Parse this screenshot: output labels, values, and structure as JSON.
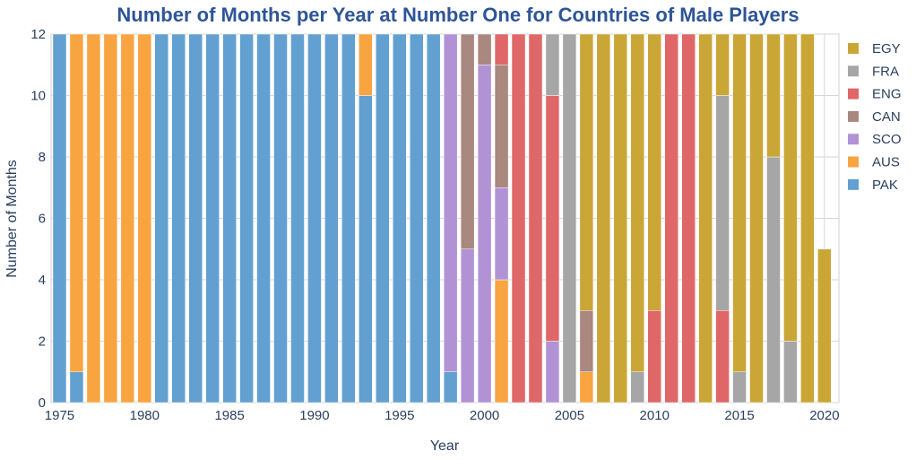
{
  "chart_data": {
    "type": "bar",
    "stacked": true,
    "title": "Number of Months per Year at Number One for Countries of Male Players",
    "xlabel": "Year",
    "ylabel": "Number of Months",
    "ylim": [
      0,
      12
    ],
    "xlim": [
      1974.5,
      2020.85
    ],
    "yticks": [
      0,
      2,
      4,
      6,
      8,
      10,
      12
    ],
    "xticks": [
      1975,
      1980,
      1985,
      1990,
      1995,
      2000,
      2005,
      2010,
      2015,
      2020
    ],
    "grid": true,
    "legend_position": "right",
    "stack_order": [
      "PAK",
      "AUS",
      "SCO",
      "CAN",
      "ENG",
      "FRA",
      "EGY"
    ],
    "legend_order": [
      "EGY",
      "FRA",
      "ENG",
      "CAN",
      "SCO",
      "AUS",
      "PAK"
    ],
    "colors": {
      "PAK": "#62a0d2",
      "AUS": "#f8a441",
      "SCO": "#b193d5",
      "CAN": "#a98880",
      "ENG": "#e06767",
      "FRA": "#a6a6a6",
      "EGY": "#c9a636"
    },
    "data": [
      {
        "year": 1975,
        "PAK": 12
      },
      {
        "year": 1976,
        "PAK": 1,
        "AUS": 11
      },
      {
        "year": 1977,
        "AUS": 12
      },
      {
        "year": 1978,
        "AUS": 12
      },
      {
        "year": 1979,
        "AUS": 12
      },
      {
        "year": 1980,
        "AUS": 12
      },
      {
        "year": 1981,
        "PAK": 12
      },
      {
        "year": 1982,
        "PAK": 12
      },
      {
        "year": 1983,
        "PAK": 12
      },
      {
        "year": 1984,
        "PAK": 12
      },
      {
        "year": 1985,
        "PAK": 12
      },
      {
        "year": 1986,
        "PAK": 12
      },
      {
        "year": 1987,
        "PAK": 12
      },
      {
        "year": 1988,
        "PAK": 12
      },
      {
        "year": 1989,
        "PAK": 12
      },
      {
        "year": 1990,
        "PAK": 12
      },
      {
        "year": 1991,
        "PAK": 12
      },
      {
        "year": 1992,
        "PAK": 12
      },
      {
        "year": 1993,
        "PAK": 10,
        "AUS": 2
      },
      {
        "year": 1994,
        "PAK": 12
      },
      {
        "year": 1995,
        "PAK": 12
      },
      {
        "year": 1996,
        "PAK": 12
      },
      {
        "year": 1997,
        "PAK": 12
      },
      {
        "year": 1998,
        "PAK": 1,
        "SCO": 11
      },
      {
        "year": 1999,
        "SCO": 5,
        "CAN": 7
      },
      {
        "year": 2000,
        "SCO": 11,
        "CAN": 1
      },
      {
        "year": 2001,
        "AUS": 4,
        "SCO": 3,
        "CAN": 4,
        "ENG": 1
      },
      {
        "year": 2002,
        "ENG": 12
      },
      {
        "year": 2003,
        "ENG": 12
      },
      {
        "year": 2004,
        "SCO": 2,
        "ENG": 8,
        "FRA": 2
      },
      {
        "year": 2005,
        "FRA": 12
      },
      {
        "year": 2006,
        "AUS": 1,
        "CAN": 2,
        "EGY": 9
      },
      {
        "year": 2007,
        "EGY": 12
      },
      {
        "year": 2008,
        "EGY": 12
      },
      {
        "year": 2009,
        "FRA": 1,
        "EGY": 11
      },
      {
        "year": 2010,
        "ENG": 3,
        "EGY": 9
      },
      {
        "year": 2011,
        "ENG": 12
      },
      {
        "year": 2012,
        "ENG": 12
      },
      {
        "year": 2013,
        "EGY": 12
      },
      {
        "year": 2014,
        "ENG": 3,
        "FRA": 7,
        "EGY": 2
      },
      {
        "year": 2015,
        "FRA": 1,
        "EGY": 11
      },
      {
        "year": 2016,
        "EGY": 12
      },
      {
        "year": 2017,
        "FRA": 8,
        "EGY": 4
      },
      {
        "year": 2018,
        "FRA": 2,
        "EGY": 10
      },
      {
        "year": 2019,
        "EGY": 12
      },
      {
        "year": 2020,
        "EGY": 5
      }
    ]
  }
}
